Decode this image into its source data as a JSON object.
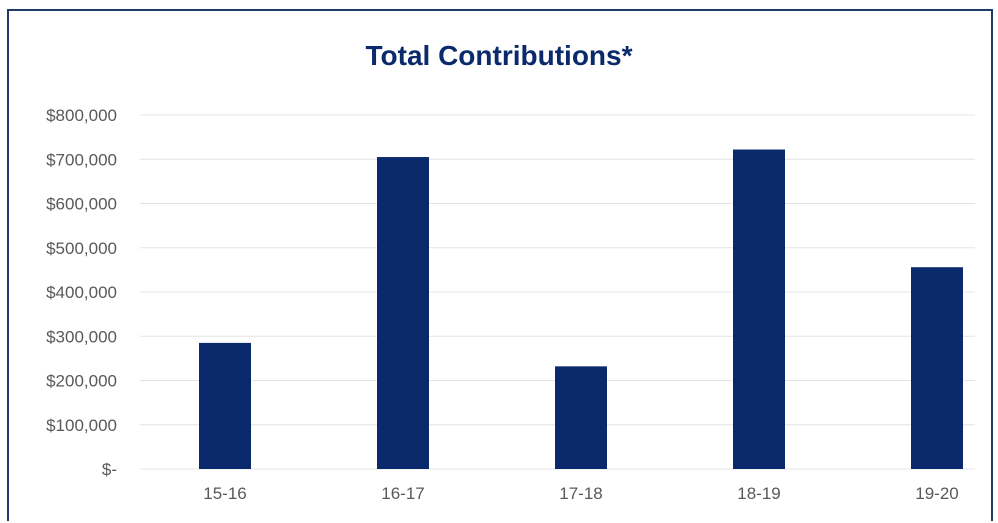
{
  "chart_data": {
    "type": "bar",
    "title": "Total Contributions*",
    "categories": [
      "15-16",
      "16-17",
      "17-18",
      "18-19",
      "19-20"
    ],
    "values": [
      285000,
      705000,
      232000,
      722000,
      456000
    ],
    "ylim": [
      0,
      800000
    ],
    "yticks": [
      0,
      100000,
      200000,
      300000,
      400000,
      500000,
      600000,
      700000,
      800000
    ],
    "ytick_labels": [
      "$-",
      "$100,000",
      "$200,000",
      "$300,000",
      "$400,000",
      "$500,000",
      "$600,000",
      "$700,000",
      "$800,000"
    ],
    "xlabel": "",
    "ylabel": "",
    "grid": true,
    "legend": "none",
    "colors": {
      "bar": "#0b2a6b",
      "frame": "#1f3a6b",
      "grid": "#e4e4e4",
      "title": "#0b2a6b",
      "tick_text": "#595959"
    }
  }
}
